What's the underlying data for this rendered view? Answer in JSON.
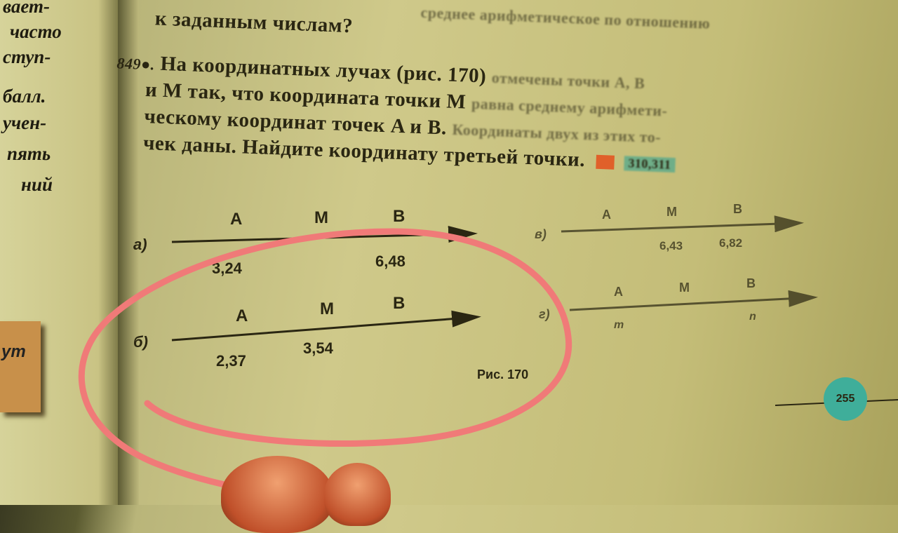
{
  "left_page": {
    "lines": [
      "вает-",
      "часто",
      "ступ-",
      "балл.",
      "учен-",
      "пять",
      "ний"
    ],
    "tab_label": "ут"
  },
  "text": {
    "line0": "среднее арифметическое по отношению",
    "line1": "к заданным числам?",
    "problem_number": "849●.",
    "line2a": "На координатных лучах (рис. 170)",
    "line2b": "отмечены точки A, B",
    "line3a": "и M так, что координата точки M",
    "line3b": "равна среднему арифмети-",
    "line4a": "ческому координат точек A и B.",
    "line4b": "Координаты двух из этих то-",
    "line5": "чек даны. Найдите координату третьей точки.",
    "badge": "310,311"
  },
  "figures": {
    "a": {
      "label": "а)",
      "points": [
        "A",
        "M",
        "B"
      ],
      "values": [
        "3,24",
        "",
        "6,48"
      ]
    },
    "b": {
      "label": "б)",
      "points": [
        "A",
        "M",
        "B"
      ],
      "values": [
        "2,37",
        "3,54",
        ""
      ]
    },
    "v": {
      "label": "в)",
      "points": [
        "A",
        "M",
        "B"
      ],
      "values": [
        "",
        "6,43",
        "6,82"
      ]
    },
    "g": {
      "label": "г)",
      "points": [
        "A",
        "M",
        "B"
      ],
      "values": [
        "m",
        "",
        "n"
      ]
    },
    "caption": "Рис. 170"
  },
  "page_number": "255",
  "colors": {
    "highlight_circle": "#f07a78",
    "page_badge": "#3fae9a"
  }
}
